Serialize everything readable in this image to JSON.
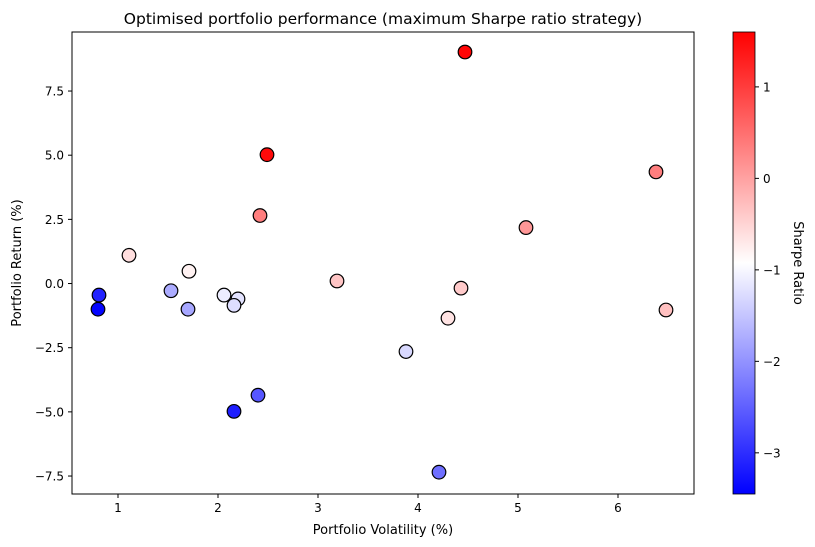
{
  "chart_data": {
    "type": "scatter",
    "title": "Optimised portfolio performance (maximum Sharpe ratio strategy)",
    "xlabel": "Portfolio Volatility (%)",
    "ylabel": "Portfolio Return (%)",
    "xlim": [
      0.54,
      6.76
    ],
    "ylim": [
      -8.2,
      9.8
    ],
    "xticks": [
      1,
      2,
      3,
      4,
      5,
      6
    ],
    "xtick_labels": [
      "1",
      "2",
      "3",
      "4",
      "5",
      "6"
    ],
    "yticks": [
      -7.5,
      -5.0,
      -2.5,
      0.0,
      2.5,
      5.0,
      7.5
    ],
    "ytick_labels": [
      "−7.5",
      "−5.0",
      "−2.5",
      "0.0",
      "2.5",
      "5.0",
      "7.5"
    ],
    "grid": false,
    "colorbar": {
      "label": "Sharpe Ratio",
      "range": [
        -3.45,
        1.6
      ],
      "ticks": [
        1,
        0,
        -1,
        -2,
        -3
      ],
      "tick_labels": [
        "1",
        "0",
        "−1",
        "−2",
        "−3"
      ],
      "colormap": "bwr",
      "low_color": "#0000ff",
      "mid_color": "#ffffff",
      "high_color": "#ff0000"
    },
    "points": [
      {
        "x": 4.47,
        "y": 9.02,
        "sharpe": 1.55
      },
      {
        "x": 2.49,
        "y": 5.02,
        "sharpe": 1.5
      },
      {
        "x": 6.38,
        "y": 4.35,
        "sharpe": 0.35
      },
      {
        "x": 2.42,
        "y": 2.65,
        "sharpe": 0.35
      },
      {
        "x": 5.08,
        "y": 2.18,
        "sharpe": 0.1
      },
      {
        "x": 1.11,
        "y": 1.1,
        "sharpe": -0.6
      },
      {
        "x": 1.71,
        "y": 0.48,
        "sharpe": -0.8
      },
      {
        "x": 3.19,
        "y": 0.1,
        "sharpe": -0.35
      },
      {
        "x": 4.43,
        "y": -0.18,
        "sharpe": -0.4
      },
      {
        "x": 0.81,
        "y": -0.45,
        "sharpe": -3.1
      },
      {
        "x": 1.53,
        "y": -0.28,
        "sharpe": -1.75
      },
      {
        "x": 2.06,
        "y": -0.45,
        "sharpe": -1.1
      },
      {
        "x": 2.2,
        "y": -0.6,
        "sharpe": -1.2
      },
      {
        "x": 2.16,
        "y": -0.85,
        "sharpe": -1.25
      },
      {
        "x": 0.8,
        "y": -1.0,
        "sharpe": -3.4
      },
      {
        "x": 1.7,
        "y": -1.0,
        "sharpe": -1.8
      },
      {
        "x": 4.3,
        "y": -1.35,
        "sharpe": -0.65
      },
      {
        "x": 6.48,
        "y": -1.03,
        "sharpe": -0.3
      },
      {
        "x": 3.88,
        "y": -2.65,
        "sharpe": -1.3
      },
      {
        "x": 2.4,
        "y": -4.35,
        "sharpe": -2.6
      },
      {
        "x": 2.16,
        "y": -4.98,
        "sharpe": -3.15
      },
      {
        "x": 4.21,
        "y": -7.35,
        "sharpe": -2.35
      }
    ]
  }
}
